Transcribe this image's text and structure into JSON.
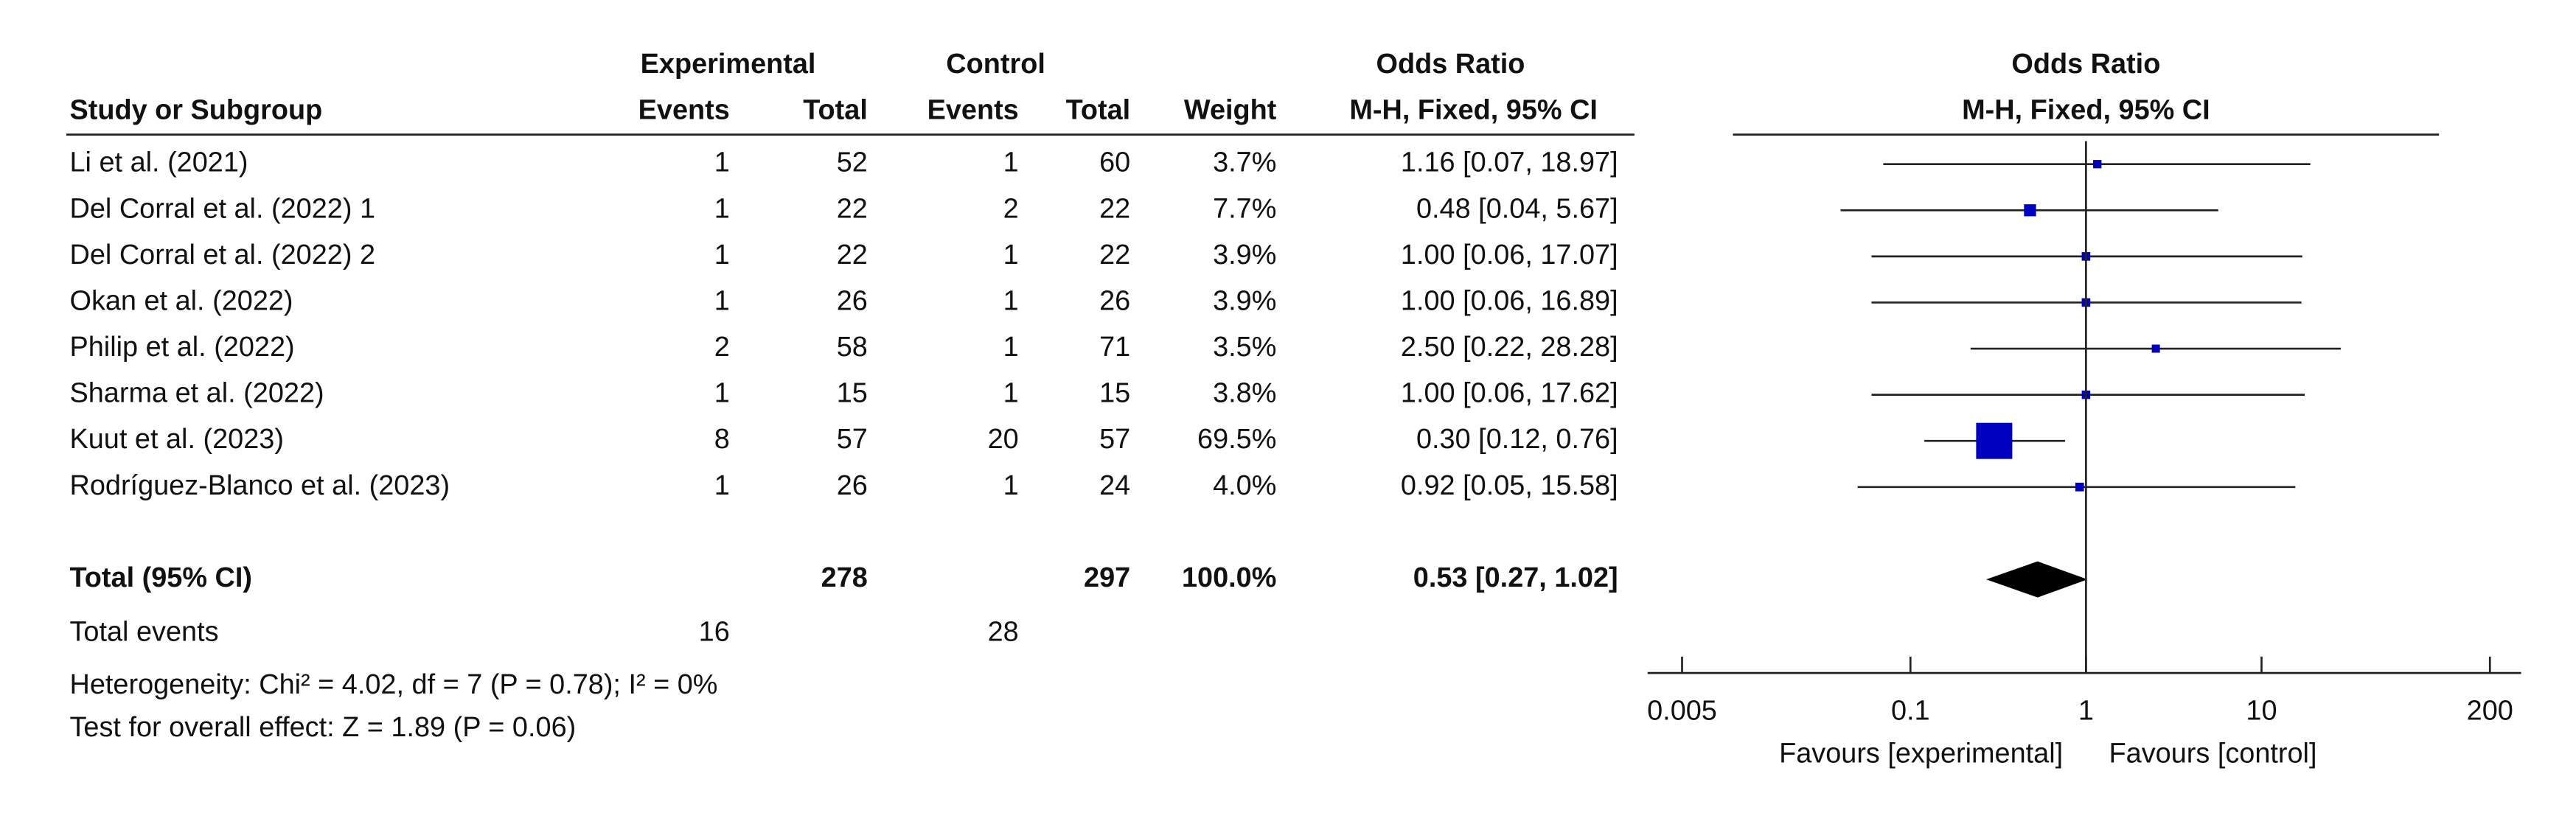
{
  "chart_data": {
    "type": "forest",
    "headers": {
      "experimental": "Experimental",
      "control": "Control",
      "or_col": "Odds Ratio",
      "or_plot": "Odds Ratio",
      "study": "Study or Subgroup",
      "exp_events": "Events",
      "exp_total": "Total",
      "ctl_events": "Events",
      "ctl_total": "Total",
      "weight": "Weight",
      "method_col": "M-H, Fixed, 95% CI",
      "method_plot": "M-H, Fixed, 95% CI"
    },
    "color": "#0000c0",
    "studies": [
      {
        "name": "Li et al. (2021)",
        "exp_events": 1,
        "exp_total": 52,
        "ctl_events": 1,
        "ctl_total": 60,
        "weight": 3.7,
        "weight_label": "3.7%",
        "or": 1.16,
        "ci": [
          0.07,
          18.97
        ],
        "label": "1.16 [0.07, 18.97]"
      },
      {
        "name": "Del Corral et al. (2022) 1",
        "exp_events": 1,
        "exp_total": 22,
        "ctl_events": 2,
        "ctl_total": 22,
        "weight": 7.7,
        "weight_label": "7.7%",
        "or": 0.48,
        "ci": [
          0.04,
          5.67
        ],
        "label": "0.48 [0.04, 5.67]"
      },
      {
        "name": "Del Corral et al. (2022) 2",
        "exp_events": 1,
        "exp_total": 22,
        "ctl_events": 1,
        "ctl_total": 22,
        "weight": 3.9,
        "weight_label": "3.9%",
        "or": 1.0,
        "ci": [
          0.06,
          17.07
        ],
        "label": "1.00 [0.06, 17.07]"
      },
      {
        "name": "Okan et al. (2022)",
        "exp_events": 1,
        "exp_total": 26,
        "ctl_events": 1,
        "ctl_total": 26,
        "weight": 3.9,
        "weight_label": "3.9%",
        "or": 1.0,
        "ci": [
          0.06,
          16.89
        ],
        "label": "1.00 [0.06, 16.89]"
      },
      {
        "name": "Philip et al. (2022)",
        "exp_events": 2,
        "exp_total": 58,
        "ctl_events": 1,
        "ctl_total": 71,
        "weight": 3.5,
        "weight_label": "3.5%",
        "or": 2.5,
        "ci": [
          0.22,
          28.28
        ],
        "label": "2.50 [0.22, 28.28]"
      },
      {
        "name": "Sharma et al. (2022)",
        "exp_events": 1,
        "exp_total": 15,
        "ctl_events": 1,
        "ctl_total": 15,
        "weight": 3.8,
        "weight_label": "3.8%",
        "or": 1.0,
        "ci": [
          0.06,
          17.62
        ],
        "label": "1.00 [0.06, 17.62]"
      },
      {
        "name": "Kuut et al. (2023)",
        "exp_events": 8,
        "exp_total": 57,
        "ctl_events": 20,
        "ctl_total": 57,
        "weight": 69.5,
        "weight_label": "69.5%",
        "or": 0.3,
        "ci": [
          0.12,
          0.76
        ],
        "label": "0.30 [0.12, 0.76]"
      },
      {
        "name": "Rodríguez-Blanco et al. (2023)",
        "exp_events": 1,
        "exp_total": 26,
        "ctl_events": 1,
        "ctl_total": 24,
        "weight": 4.0,
        "weight_label": "4.0%",
        "or": 0.92,
        "ci": [
          0.05,
          15.58
        ],
        "label": "0.92 [0.05, 15.58]"
      }
    ],
    "total": {
      "name": "Total (95% CI)",
      "exp_total": 278,
      "ctl_total": 297,
      "weight_label": "100.0%",
      "or": 0.53,
      "ci": [
        0.27,
        1.02
      ],
      "label": "0.53 [0.27, 1.02]"
    },
    "total_events": {
      "name": "Total events",
      "exp": 16,
      "ctl": 28
    },
    "heterogeneity": "Heterogeneity: Chi² = 4.02, df = 7 (P = 0.78); I² = 0%",
    "overall_test": "Test for overall effect: Z = 1.89 (P = 0.06)",
    "log_x": true,
    "xlim": [
      0.005,
      200
    ],
    "xticks": [
      0.005,
      0.1,
      1,
      10,
      200
    ],
    "favours_left": "Favours [experimental]",
    "favours_right": "Favours [control]"
  }
}
